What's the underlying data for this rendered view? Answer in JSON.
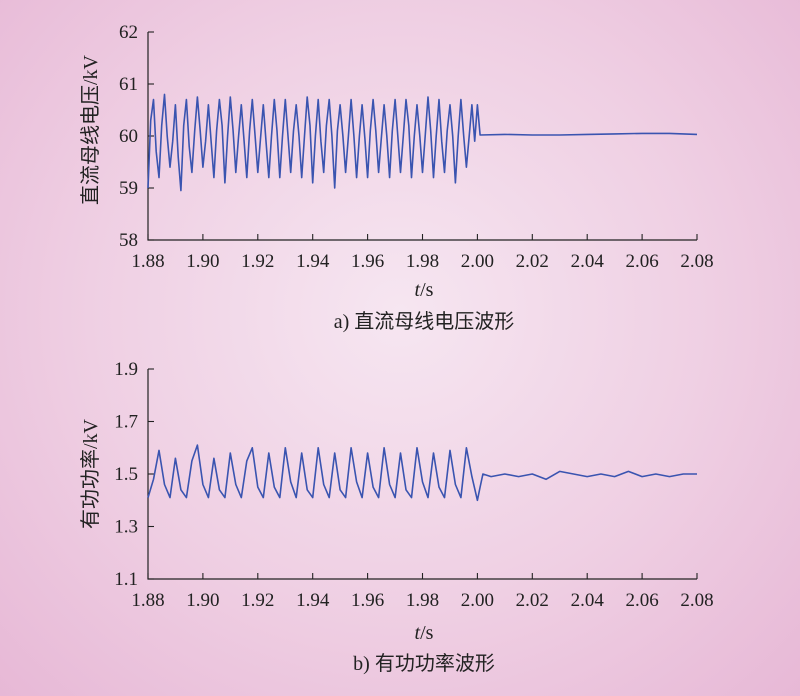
{
  "chart_data": [
    {
      "type": "line",
      "caption": "a) 直流母线电压波形",
      "xlabel": "t/s",
      "ylabel": "直流母线电压/kV",
      "xlim": [
        1.88,
        2.08
      ],
      "ylim": [
        58,
        62
      ],
      "xticks": [
        "1.88",
        "1.90",
        "1.92",
        "1.94",
        "1.96",
        "1.98",
        "2.00",
        "2.02",
        "2.04",
        "2.06",
        "2.08"
      ],
      "yticks": [
        "58",
        "59",
        "60",
        "61",
        "62"
      ],
      "color": "#3a54b0",
      "series": [
        {
          "x": [
            1.88,
            1.881,
            1.882,
            1.883,
            1.884,
            1.885,
            1.886,
            1.887,
            1.888,
            1.889,
            1.89,
            1.891,
            1.892,
            1.893,
            1.894,
            1.895,
            1.896,
            1.897,
            1.898,
            1.899,
            1.9,
            1.901,
            1.902,
            1.903,
            1.904,
            1.905,
            1.906,
            1.907,
            1.908,
            1.909,
            1.91,
            1.911,
            1.912,
            1.913,
            1.914,
            1.915,
            1.916,
            1.917,
            1.918,
            1.919,
            1.92,
            1.921,
            1.922,
            1.923,
            1.924,
            1.925,
            1.926,
            1.927,
            1.928,
            1.929,
            1.93,
            1.931,
            1.932,
            1.933,
            1.934,
            1.935,
            1.936,
            1.937,
            1.938,
            1.939,
            1.94,
            1.941,
            1.942,
            1.943,
            1.944,
            1.945,
            1.946,
            1.947,
            1.948,
            1.949,
            1.95,
            1.951,
            1.952,
            1.953,
            1.954,
            1.955,
            1.956,
            1.957,
            1.958,
            1.959,
            1.96,
            1.961,
            1.962,
            1.963,
            1.964,
            1.965,
            1.966,
            1.967,
            1.968,
            1.969,
            1.97,
            1.971,
            1.972,
            1.973,
            1.974,
            1.975,
            1.976,
            1.977,
            1.978,
            1.979,
            1.98,
            1.981,
            1.982,
            1.983,
            1.984,
            1.985,
            1.986,
            1.987,
            1.988,
            1.989,
            1.99,
            1.991,
            1.992,
            1.993,
            1.994,
            1.995,
            1.996,
            1.997,
            1.998,
            1.999,
            2.0,
            2.001,
            2.01,
            2.02,
            2.03,
            2.04,
            2.05,
            2.06,
            2.07,
            2.08
          ],
          "y": [
            59.0,
            60.3,
            60.7,
            59.7,
            59.2,
            60.2,
            60.8,
            60.0,
            59.4,
            59.9,
            60.6,
            59.6,
            58.95,
            60.2,
            60.7,
            59.8,
            59.3,
            60.1,
            60.75,
            60.1,
            59.4,
            59.9,
            60.6,
            59.9,
            59.2,
            60.1,
            60.7,
            60.2,
            59.1,
            60.0,
            60.75,
            60.1,
            59.3,
            60.0,
            60.6,
            59.9,
            59.2,
            60.1,
            60.7,
            60.0,
            59.3,
            59.95,
            60.6,
            59.9,
            59.2,
            60.0,
            60.7,
            60.1,
            59.2,
            60.0,
            60.7,
            60.0,
            59.3,
            60.1,
            60.6,
            60.0,
            59.2,
            60.0,
            60.75,
            60.2,
            59.1,
            60.0,
            60.7,
            59.9,
            59.3,
            60.2,
            60.7,
            60.0,
            59.0,
            60.1,
            60.6,
            60.0,
            59.3,
            60.0,
            60.7,
            60.0,
            59.2,
            60.0,
            60.6,
            59.95,
            59.2,
            60.1,
            60.7,
            60.1,
            59.3,
            59.95,
            60.6,
            60.0,
            59.2,
            60.1,
            60.7,
            60.0,
            59.3,
            60.0,
            60.7,
            60.2,
            59.2,
            60.0,
            60.6,
            60.0,
            59.3,
            60.0,
            60.75,
            60.1,
            59.2,
            60.0,
            60.7,
            59.9,
            59.3,
            60.1,
            60.6,
            60.0,
            59.1,
            60.0,
            60.7,
            60.0,
            59.4,
            60.0,
            60.6,
            59.9,
            60.6,
            60.02,
            60.03,
            60.02,
            60.02,
            60.03,
            60.04,
            60.05,
            60.05,
            60.03
          ]
        }
      ]
    },
    {
      "type": "line",
      "caption": "b) 有功功率波形",
      "xlabel": "t/s",
      "ylabel": "有功功率/kV",
      "xlim": [
        1.88,
        2.08
      ],
      "ylim": [
        1.1,
        1.9
      ],
      "xticks": [
        "1.88",
        "1.90",
        "1.92",
        "1.94",
        "1.96",
        "1.98",
        "2.00",
        "2.02",
        "2.04",
        "2.06",
        "2.08"
      ],
      "yticks": [
        "1.1",
        "1.3",
        "1.5",
        "1.7",
        "1.9"
      ],
      "color": "#3a54b0",
      "series": [
        {
          "x": [
            1.88,
            1.882,
            1.884,
            1.886,
            1.888,
            1.89,
            1.892,
            1.894,
            1.896,
            1.898,
            1.9,
            1.902,
            1.904,
            1.906,
            1.908,
            1.91,
            1.912,
            1.914,
            1.916,
            1.918,
            1.92,
            1.922,
            1.924,
            1.926,
            1.928,
            1.93,
            1.932,
            1.934,
            1.936,
            1.938,
            1.94,
            1.942,
            1.944,
            1.946,
            1.948,
            1.95,
            1.952,
            1.954,
            1.956,
            1.958,
            1.96,
            1.962,
            1.964,
            1.966,
            1.968,
            1.97,
            1.972,
            1.974,
            1.976,
            1.978,
            1.98,
            1.982,
            1.984,
            1.986,
            1.988,
            1.99,
            1.992,
            1.994,
            1.996,
            1.998,
            2.0,
            2.001,
            2.002,
            2.005,
            2.01,
            2.015,
            2.02,
            2.025,
            2.03,
            2.035,
            2.04,
            2.045,
            2.05,
            2.055,
            2.06,
            2.065,
            2.07,
            2.075,
            2.08
          ],
          "y": [
            1.41,
            1.48,
            1.59,
            1.46,
            1.41,
            1.56,
            1.44,
            1.41,
            1.55,
            1.61,
            1.46,
            1.41,
            1.56,
            1.44,
            1.41,
            1.58,
            1.46,
            1.41,
            1.55,
            1.6,
            1.45,
            1.41,
            1.58,
            1.45,
            1.41,
            1.6,
            1.47,
            1.41,
            1.58,
            1.44,
            1.41,
            1.6,
            1.46,
            1.41,
            1.58,
            1.44,
            1.41,
            1.6,
            1.47,
            1.41,
            1.58,
            1.45,
            1.41,
            1.6,
            1.46,
            1.41,
            1.58,
            1.44,
            1.41,
            1.6,
            1.47,
            1.41,
            1.58,
            1.45,
            1.41,
            1.59,
            1.46,
            1.41,
            1.6,
            1.49,
            1.4,
            1.45,
            1.5,
            1.49,
            1.5,
            1.49,
            1.5,
            1.48,
            1.51,
            1.5,
            1.49,
            1.5,
            1.49,
            1.51,
            1.49,
            1.5,
            1.49,
            1.5,
            1.5
          ]
        }
      ]
    }
  ]
}
